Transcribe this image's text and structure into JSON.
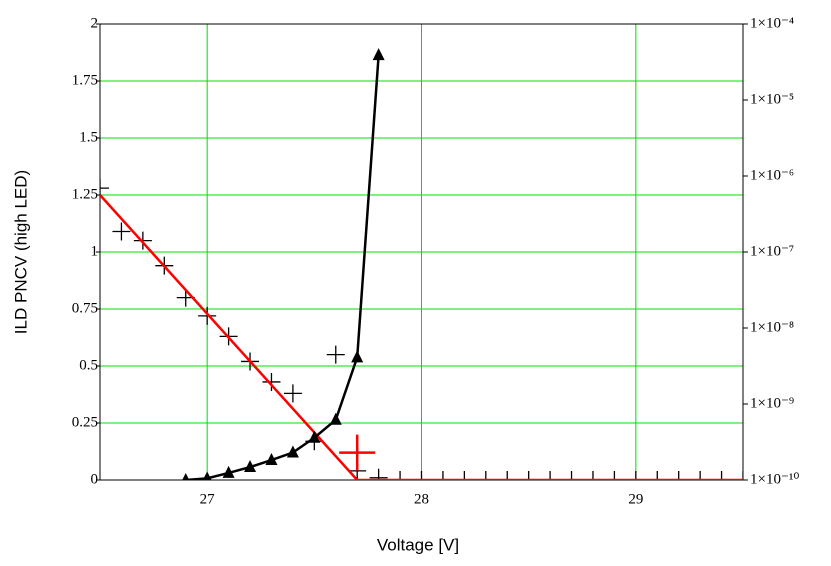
{
  "chart_data": {
    "type": "line",
    "x_label": "Voltage [V]",
    "y_label": "ILD PNCV (high LED)",
    "xlim": [
      26.5,
      29.5
    ],
    "xticks": [
      27,
      28,
      29
    ],
    "ylim": [
      0,
      2
    ],
    "yticks": [
      0,
      0.25,
      0.5,
      0.75,
      1,
      1.25,
      1.5,
      1.75,
      2
    ],
    "y2lim": [
      1e-10,
      0.0001
    ],
    "y2scale": "log",
    "y2ticks": [
      {
        "value": 0.0001,
        "label": "1×10⁻⁴"
      },
      {
        "value": 1e-05,
        "label": "1×10⁻⁵"
      },
      {
        "value": 1e-06,
        "label": "1×10⁻⁶"
      },
      {
        "value": 1e-07,
        "label": "1×10⁻⁷"
      },
      {
        "value": 1e-08,
        "label": "1×10⁻⁸"
      },
      {
        "value": 1e-09,
        "label": "1×10⁻⁹"
      },
      {
        "value": 1e-10,
        "label": "1×10⁻¹⁰"
      }
    ],
    "grid": true,
    "grid_color": "#00e000",
    "series": [
      {
        "color": "#000000",
        "marker": "plus",
        "line": false,
        "x": [
          26.5,
          26.6,
          26.7,
          26.8,
          26.9,
          27.0,
          27.1,
          27.2,
          27.3,
          27.4,
          27.5,
          27.6,
          27.7,
          27.8,
          27.9,
          28.0,
          28.1,
          28.2,
          28.3,
          28.4,
          28.5,
          28.6,
          28.7,
          28.8,
          28.9,
          29.0,
          29.1,
          29.2,
          29.3,
          29.4,
          29.5
        ],
        "values": [
          1.28,
          1.09,
          1.05,
          0.94,
          0.8,
          0.72,
          0.63,
          0.52,
          0.43,
          0.38,
          0.17,
          0.55,
          0.04,
          0.01,
          0,
          0,
          0,
          0,
          0,
          0,
          0,
          0,
          0,
          0,
          0,
          0,
          0,
          0,
          0,
          0,
          0
        ]
      },
      {
        "color": "#ff0000",
        "marker": "big-plus",
        "line": false,
        "x": [
          27.7
        ],
        "values": [
          0.12
        ]
      },
      {
        "color": "#ff0000",
        "marker": "none",
        "line": true,
        "x": [
          26.5,
          27.7,
          29.5
        ],
        "values": [
          1.25,
          0,
          0
        ]
      },
      {
        "color": "#000000",
        "marker": "triangle",
        "line": true,
        "axis": "y2",
        "x": [
          26.9,
          27.0,
          27.1,
          27.2,
          27.3,
          27.4,
          27.5,
          27.6,
          27.7,
          27.8
        ],
        "values": [
          1e-10,
          1.05e-10,
          1.24e-10,
          1.48e-10,
          1.83e-10,
          2.3e-10,
          3.6e-10,
          6.2e-10,
          4.1e-09,
          3.9e-05
        ]
      }
    ]
  }
}
